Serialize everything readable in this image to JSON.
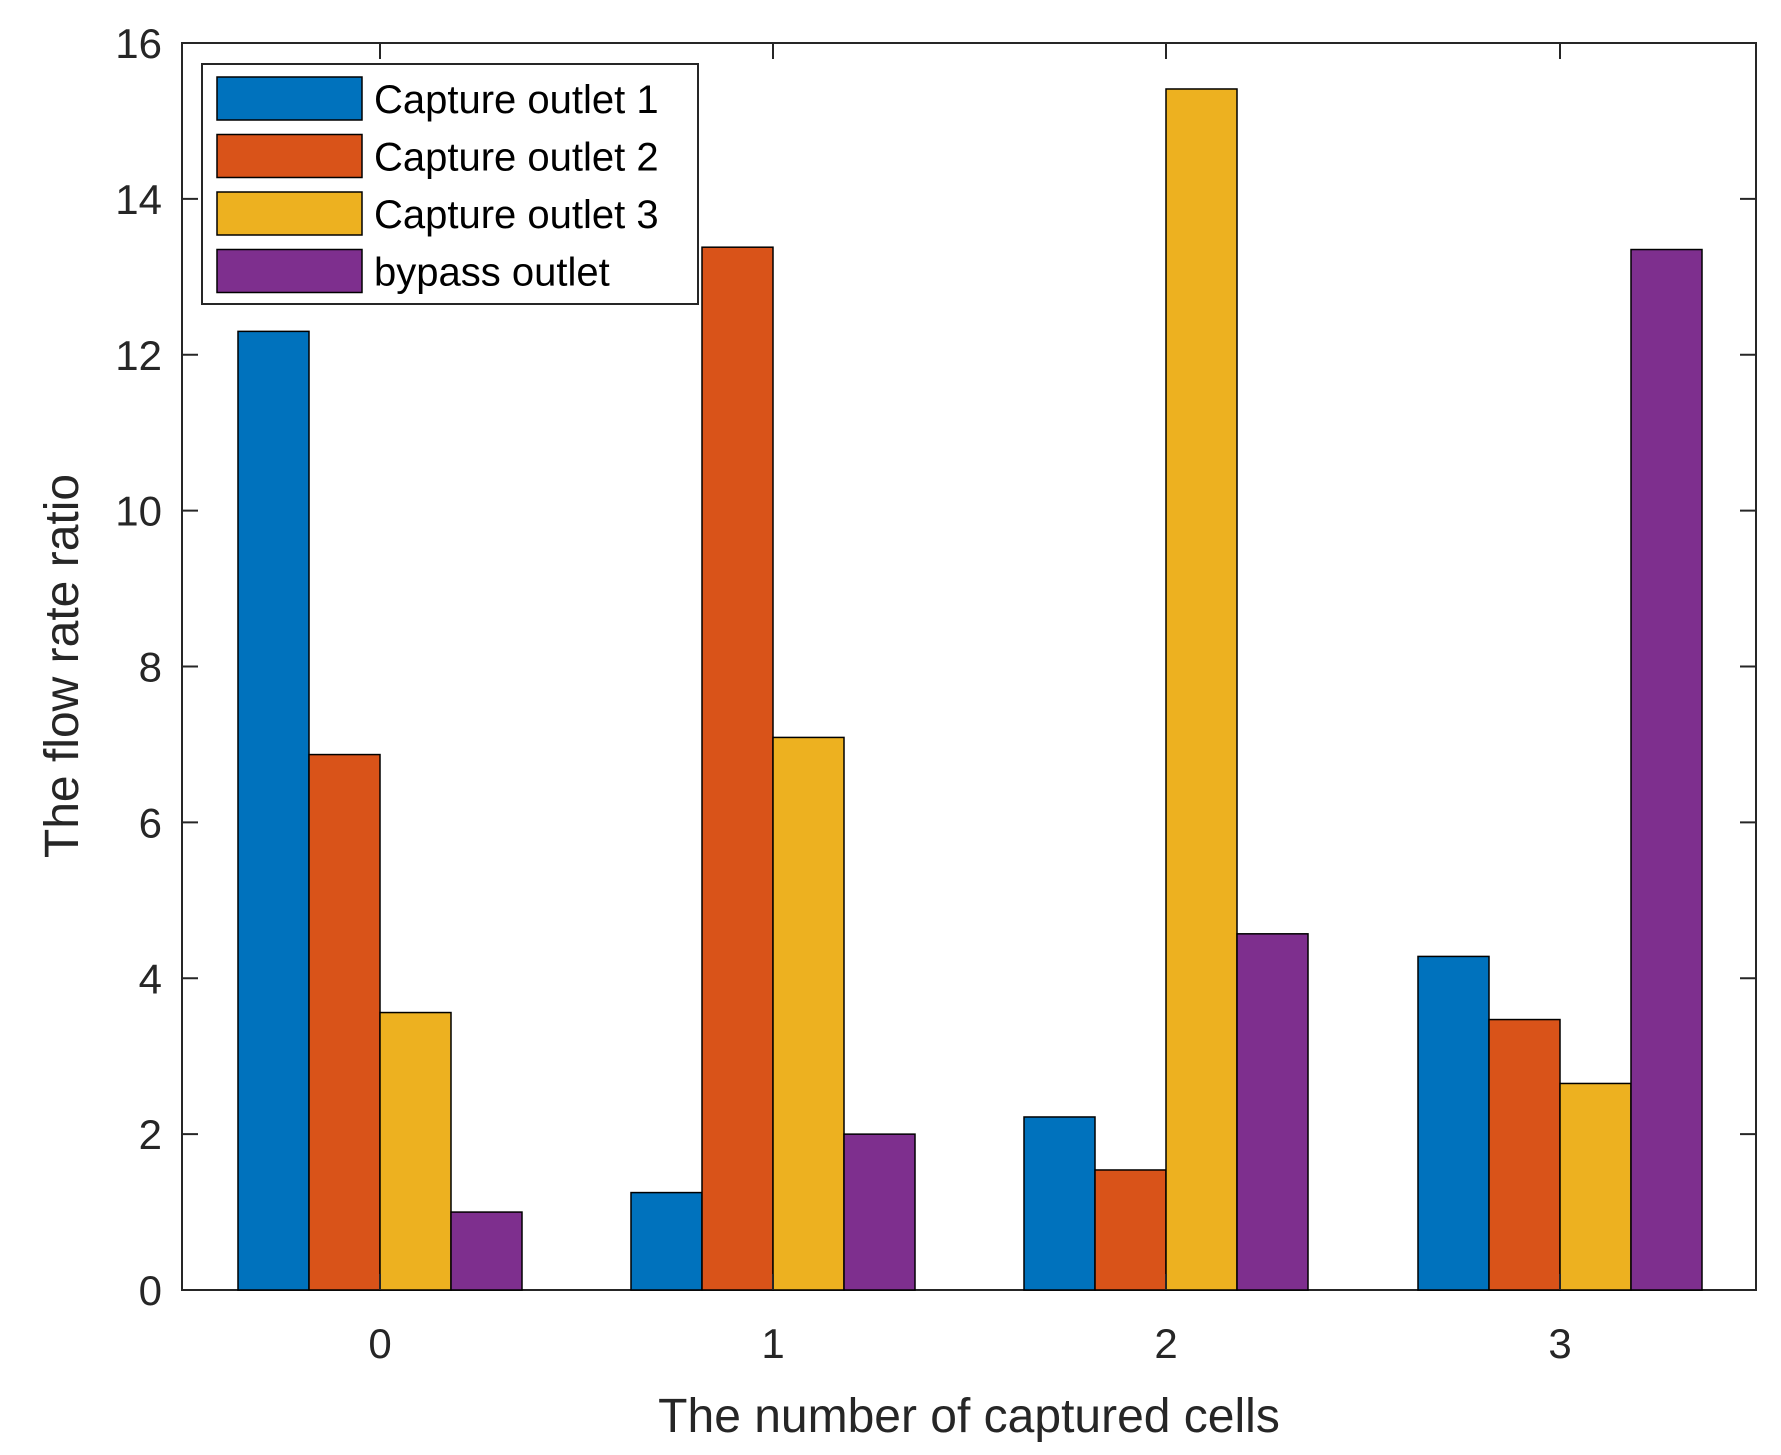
{
  "chart_data": {
    "type": "bar",
    "title": "",
    "xlabel": "The number of captured cells",
    "ylabel": "The flow rate ratio",
    "categories": [
      "0",
      "1",
      "2",
      "3"
    ],
    "ylim": [
      0,
      16
    ],
    "yticks": [
      "0",
      "2",
      "4",
      "6",
      "8",
      "10",
      "12",
      "14",
      "16"
    ],
    "grid": false,
    "legend_position": "top-left",
    "series": [
      {
        "name": "Capture outlet 1",
        "color": "#0072BD",
        "values": [
          12.3,
          1.25,
          2.22,
          4.28
        ]
      },
      {
        "name": "Capture outlet 2",
        "color": "#D95319",
        "values": [
          6.87,
          13.38,
          1.54,
          3.47
        ]
      },
      {
        "name": "Capture outlet 3",
        "color": "#EDB120",
        "values": [
          3.56,
          7.09,
          15.41,
          2.65
        ]
      },
      {
        "name": "bypass outlet",
        "color": "#7E2F8E",
        "values": [
          1.0,
          2.0,
          4.57,
          13.35
        ]
      }
    ]
  }
}
